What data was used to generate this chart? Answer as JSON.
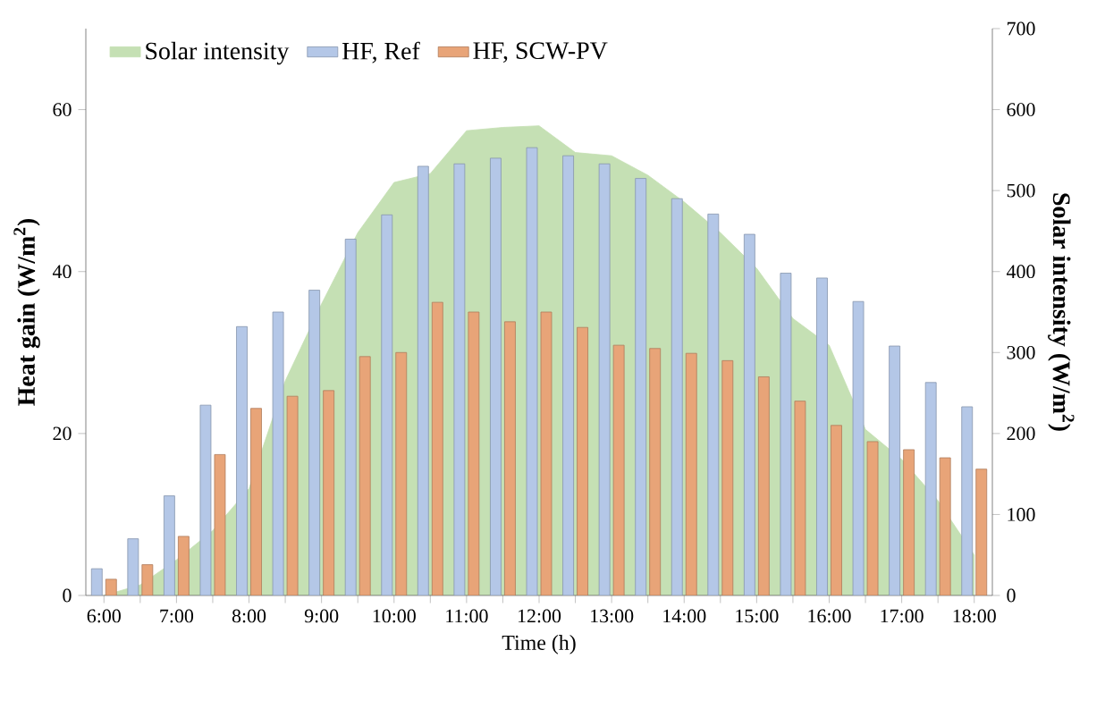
{
  "chart_data": {
    "type": "bar",
    "xlabel": "Time (h)",
    "ylabel": "Heat gain (W/m$^{2}$)",
    "y2label": "Solar intensity (W/m$^{2}$)",
    "categories": [
      "6:00",
      null,
      "7:00",
      null,
      "8:00",
      null,
      "9:00",
      null,
      "10:00",
      null,
      "11:00",
      null,
      "12:00",
      null,
      "13:00",
      null,
      "14:00",
      null,
      "15:00",
      null,
      "16:00",
      null,
      "17:00",
      null,
      "18:00"
    ],
    "series": [
      {
        "name": "Solar intensity",
        "type": "area",
        "axis": "y2",
        "color": "#c5e0b4",
        "values": [
          0,
          13,
          44,
          80,
          132,
          265,
          360,
          448,
          510,
          521,
          574,
          578,
          580,
          547,
          543,
          519,
          486,
          448,
          404,
          342,
          309,
          205,
          168,
          117,
          50
        ]
      },
      {
        "name": "HF, Ref",
        "color": "#b4c7e7",
        "values": [
          3.3,
          7,
          12.3,
          23.5,
          33.2,
          35,
          37.7,
          44,
          47,
          53,
          53.3,
          54,
          55.3,
          54.3,
          53.3,
          51.5,
          49,
          47.1,
          44.6,
          39.8,
          39.2,
          36.3,
          30.8,
          26.3,
          23.3
        ]
      },
      {
        "name": "HF, SCW-PV",
        "color": "#e8a478",
        "values": [
          2,
          3.8,
          7.3,
          17.4,
          23.1,
          24.6,
          25.3,
          29.5,
          30,
          36.2,
          35,
          33.8,
          35,
          33.1,
          30.9,
          30.5,
          29.9,
          29,
          27,
          24,
          21,
          19,
          18,
          17,
          15.6
        ]
      }
    ],
    "ylim": [
      0,
      70
    ],
    "yticks": [
      0,
      20,
      40,
      60
    ],
    "y2lim": [
      0,
      700
    ],
    "y2ticks": [
      0,
      100,
      200,
      300,
      400,
      500,
      600,
      700
    ],
    "legend": "top left"
  }
}
